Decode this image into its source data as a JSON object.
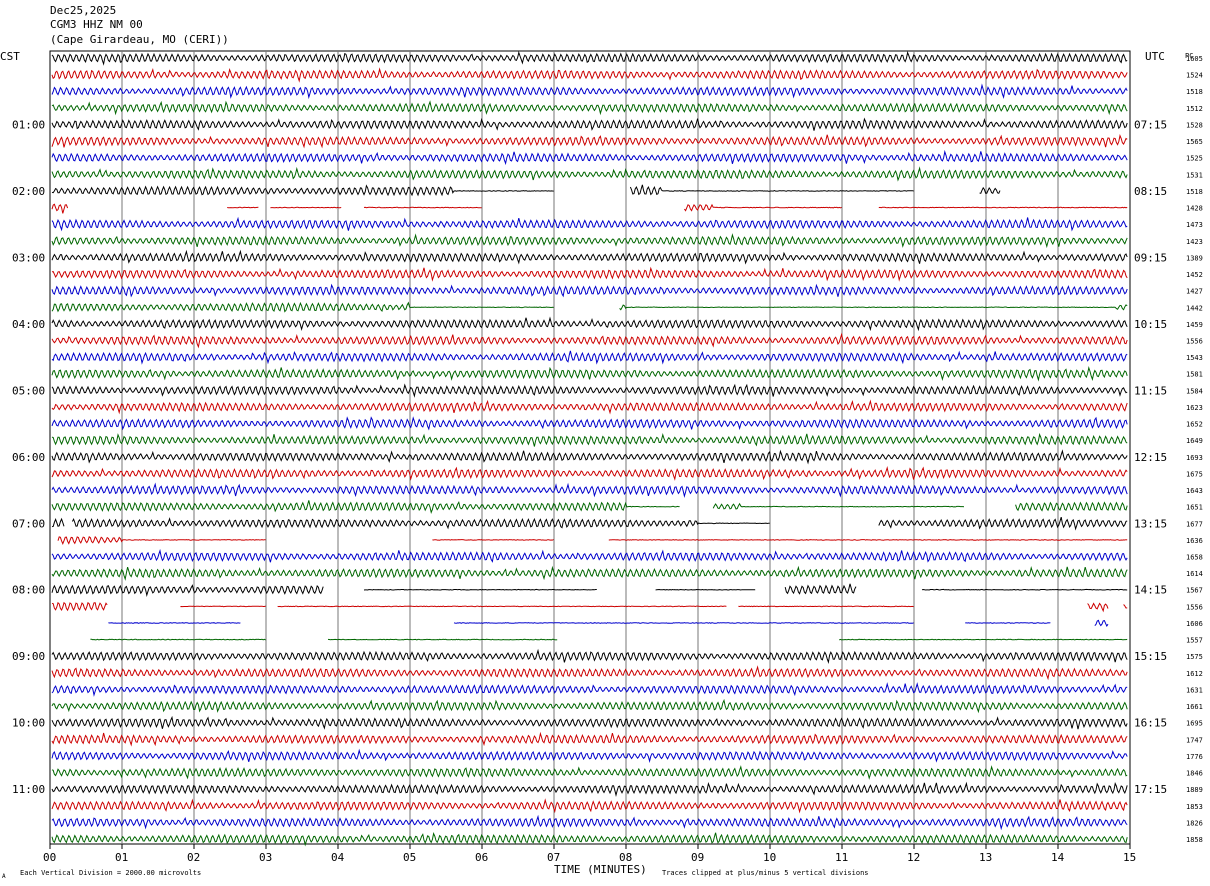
{
  "header": {
    "date": "Dec25,2025",
    "station": "CGM3 HHZ NM 00",
    "location": "(Cape Girardeau, MO (CERI))"
  },
  "labels": {
    "left_tz": "CST",
    "right_tz": "UTC",
    "pc": "PC",
    "xlabel": "TIME (MINUTES)",
    "scale_note": "Each Vertical Division = 2000.00 microvolts",
    "clip_note": "Traces clipped at plus/minus 5 vertical divisions",
    "corner_mark": "A"
  },
  "chart_data": {
    "type": "line",
    "subtype": "helicorder",
    "x_range_minutes": [
      0,
      15
    ],
    "x_ticks": [
      "00",
      "01",
      "02",
      "03",
      "04",
      "05",
      "06",
      "07",
      "08",
      "09",
      "10",
      "11",
      "12",
      "13",
      "14",
      "15"
    ],
    "trace_colors": [
      "#000000",
      "#cc0000",
      "#0000cc",
      "#006600"
    ],
    "left_hour_labels": [
      "01:00",
      "02:00",
      "03:00",
      "04:00",
      "05:00",
      "06:00",
      "07:00",
      "08:00",
      "09:00",
      "10:00",
      "11:00"
    ],
    "right_hour_labels": [
      "07:15",
      "08:15",
      "09:15",
      "10:15",
      "11:15",
      "12:15",
      "13:15",
      "14:15",
      "15:15",
      "16:15",
      "17:15"
    ],
    "trace_pc_values": [
      "1605",
      "1524",
      "1518",
      "1512",
      "1528",
      "1565",
      "1525",
      "1531",
      "1518",
      "1428",
      "1473",
      "1423",
      "1389",
      "1452",
      "1427",
      "1442",
      "1459",
      "1556",
      "1543",
      "1581",
      "1584",
      "1623",
      "1652",
      "1649",
      "1693",
      "1675",
      "1643",
      "1651",
      "1677",
      "1636",
      "1658",
      "1614",
      "1567",
      "1556",
      "1606",
      "1557",
      "1575",
      "1612",
      "1631",
      "1661",
      "1695",
      "1747",
      "1776",
      "1846",
      "1889",
      "1853",
      "1826",
      "1858"
    ],
    "grid": true
  }
}
